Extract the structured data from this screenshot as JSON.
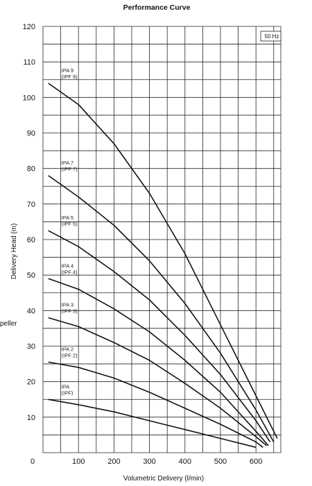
{
  "chart_data": {
    "type": "line",
    "title": "Performance Curve",
    "xlabel": "Volumetric Delivery (l/min)",
    "ylabel": "Delivery Head (m)",
    "frequency_label": "50 Hz",
    "side_text": "peller",
    "origin_label": "0",
    "xlim": [
      0,
      670
    ],
    "ylim": [
      0,
      120
    ],
    "x_ticks": [
      100,
      200,
      300,
      400,
      500,
      600
    ],
    "y_ticks": [
      10,
      20,
      30,
      40,
      50,
      60,
      70,
      80,
      90,
      100,
      110,
      120
    ],
    "grid": true,
    "series": [
      {
        "name": "IPA 9",
        "name2": "(IPF 9)",
        "x": [
          15,
          100,
          200,
          300,
          400,
          500,
          600,
          660
        ],
        "y": [
          104,
          98,
          87,
          73,
          56,
          36,
          16,
          4
        ]
      },
      {
        "name": "IPA 7",
        "name2": "(IPF 7)",
        "x": [
          15,
          100,
          200,
          300,
          400,
          500,
          600,
          650
        ],
        "y": [
          78,
          72,
          64,
          54,
          42,
          28,
          12,
          3
        ]
      },
      {
        "name": "IPA 5",
        "name2": "(IPF 5)",
        "x": [
          15,
          100,
          200,
          300,
          400,
          500,
          600,
          640
        ],
        "y": [
          62.5,
          58,
          51,
          43,
          33,
          22,
          9,
          3
        ]
      },
      {
        "name": "IPA 4",
        "name2": "(IPF 4)",
        "x": [
          15,
          100,
          200,
          300,
          400,
          500,
          600,
          635
        ],
        "y": [
          49,
          46,
          40.5,
          34,
          26,
          17,
          6,
          2
        ]
      },
      {
        "name": "IPA 3",
        "name2": "(IPF 3)",
        "x": [
          15,
          100,
          200,
          300,
          400,
          500,
          600,
          630
        ],
        "y": [
          38,
          35.5,
          31,
          26,
          19.5,
          12.5,
          4.5,
          2
        ]
      },
      {
        "name": "IPA 2",
        "name2": "(IPF 2)",
        "x": [
          15,
          100,
          200,
          300,
          400,
          500,
          600,
          620
        ],
        "y": [
          25.5,
          24,
          21,
          17,
          12.5,
          8,
          3,
          1.5
        ]
      },
      {
        "name": "IPA",
        "name2": "(IPF)",
        "x": [
          15,
          100,
          200,
          300,
          400,
          500,
          600
        ],
        "y": [
          15,
          13.5,
          11.5,
          9,
          6.5,
          4,
          1.5
        ]
      }
    ]
  }
}
